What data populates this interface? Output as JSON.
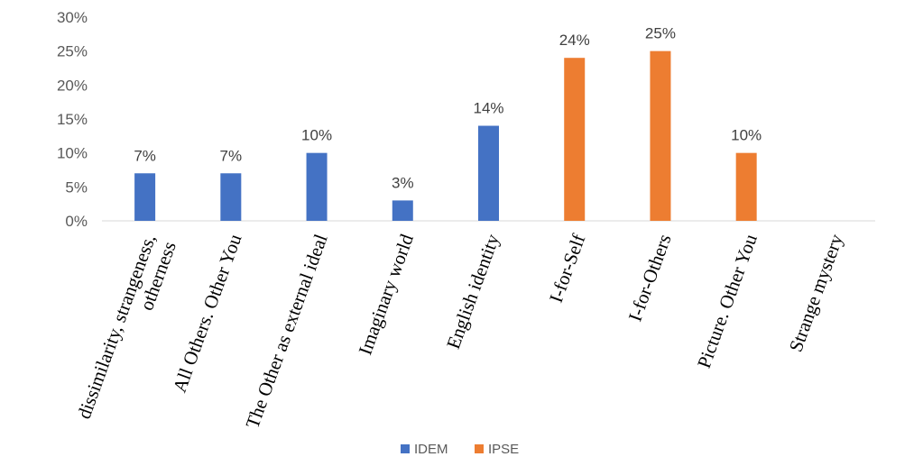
{
  "chart_data": {
    "type": "bar",
    "categories": [
      [
        "dissimilarity, strangeness,",
        "otherness"
      ],
      [
        "All Others. Other You"
      ],
      [
        "The Other as external ideal"
      ],
      [
        "Imaginary world"
      ],
      [
        "English identity"
      ],
      [
        "I-for-Self"
      ],
      [
        "I-for-Others"
      ],
      [
        "Picture. Other You"
      ],
      [
        "Strange mystery"
      ]
    ],
    "series": [
      {
        "name": "IDEM",
        "color": "#4472C4",
        "values": [
          7,
          7,
          10,
          3,
          14,
          null,
          null,
          null,
          null
        ]
      },
      {
        "name": "IPSE",
        "color": "#ED7D31",
        "values": [
          null,
          null,
          null,
          null,
          null,
          24,
          25,
          10,
          null
        ]
      }
    ],
    "data_labels": [
      "7%",
      "7%",
      "10%",
      "3%",
      "14%",
      "24%",
      "25%",
      "10%",
      ""
    ],
    "yticks": [
      "0%",
      "5%",
      "10%",
      "15%",
      "20%",
      "25%",
      "30%"
    ],
    "ylim": [
      0,
      30
    ],
    "grid": false,
    "legend_position": "bottom",
    "title": "",
    "xlabel": "",
    "ylabel": ""
  }
}
